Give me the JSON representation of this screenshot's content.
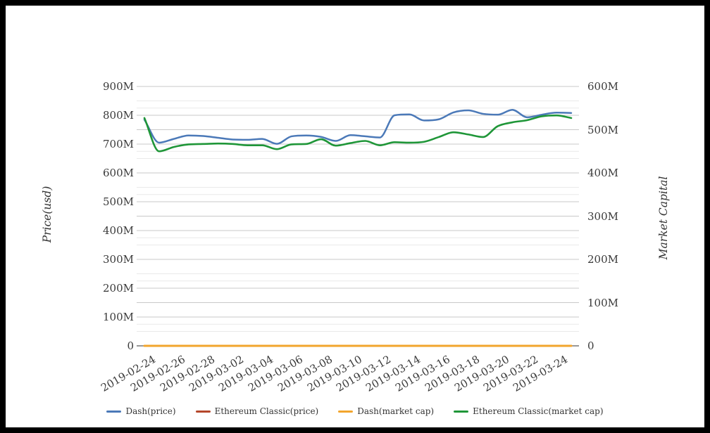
{
  "page": {
    "background": "#ffffff",
    "frame_color": "#000000",
    "text_color": "#3a3a3a"
  },
  "chart_data": {
    "type": "line",
    "title": "",
    "points_per_series": 30,
    "x_tick_labels": [
      "2019-02-24",
      "2019-02-26",
      "2019-02-28",
      "2019-03-02",
      "2019-03-04",
      "2019-03-06",
      "2019-03-08",
      "2019-03-10",
      "2019-03-12",
      "2019-03-14",
      "2019-03-16",
      "2019-03-18",
      "2019-03-20",
      "2019-03-22",
      "2019-03-24"
    ],
    "left_axis": {
      "label": "Price(usd)",
      "max_m": 900,
      "tick_step_m": 100,
      "minor_step_m": 50,
      "tick_labels": [
        "900M",
        "800M",
        "700M",
        "600M",
        "500M",
        "400M",
        "300M",
        "200M",
        "100M",
        "0"
      ]
    },
    "right_axis": {
      "label": "Market Capital",
      "max_m": 600,
      "tick_step_m": 100,
      "minor_step_m": 50,
      "tick_labels": [
        "600M",
        "500M",
        "400M",
        "300M",
        "200M",
        "100M",
        "0"
      ]
    },
    "grid": {
      "major_color": "#c9c9c9",
      "minor_color": "#e9e9e9",
      "baseline_color": "#777777"
    },
    "legend_position": "bottom",
    "series": [
      {
        "name": "Dash(price)",
        "color": "#4b79b8",
        "axis": "left",
        "unit": "M",
        "stroke_width": 2.5,
        "values": [
          785,
          705,
          718,
          730,
          728,
          722,
          716,
          715,
          718,
          701,
          727,
          730,
          725,
          711,
          731,
          727,
          723,
          800,
          803,
          782,
          786,
          810,
          817,
          805,
          802,
          819,
          793,
          802,
          809,
          808
        ]
      },
      {
        "name": "Ethereum Classic(price)",
        "color": "#b5472b",
        "axis": "left",
        "unit": "M",
        "stroke_width": 2.5,
        "values": [
          0,
          0,
          0,
          0,
          0,
          0,
          0,
          0,
          0,
          0,
          0,
          0,
          0,
          0,
          0,
          0,
          0,
          0,
          0,
          0,
          0,
          0,
          0,
          0,
          0,
          0,
          0,
          0,
          0,
          0
        ]
      },
      {
        "name": "Dash(market cap)",
        "color": "#f2a52d",
        "axis": "right",
        "unit": "M",
        "stroke_width": 3,
        "values": [
          0,
          0,
          0,
          0,
          0,
          0,
          0,
          0,
          0,
          0,
          0,
          0,
          0,
          0,
          0,
          0,
          0,
          0,
          0,
          0,
          0,
          0,
          0,
          0,
          0,
          0,
          0,
          0,
          0,
          0
        ]
      },
      {
        "name": "Ethereum Classic(market cap)",
        "color": "#1f9638",
        "axis": "right",
        "unit": "M",
        "stroke_width": 2.6,
        "values": [
          527,
          450,
          460,
          466,
          467,
          468,
          467,
          464,
          464,
          455,
          466,
          467,
          478,
          463,
          469,
          474,
          464,
          471,
          470,
          472,
          483,
          494,
          489,
          483,
          508,
          517,
          522,
          531,
          533,
          527
        ]
      }
    ]
  }
}
